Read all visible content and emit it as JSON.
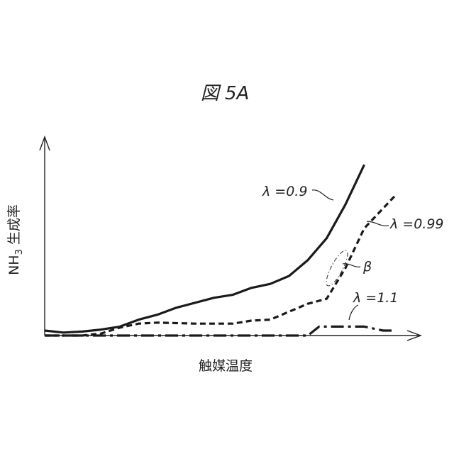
{
  "chart_data": {
    "type": "line",
    "title": "図 5A",
    "xlabel": "触媒温度",
    "ylabel_prefix": "NH",
    "ylabel_sub": "3",
    "ylabel_suffix": " 生成率",
    "xlim": [
      0,
      10
    ],
    "ylim": [
      0,
      10
    ],
    "grid": false,
    "series": [
      {
        "name": "λ =0.9",
        "style": "solid",
        "x": [
          0,
          0.5,
          1.0,
          1.5,
          2.0,
          2.5,
          3.0,
          3.5,
          4.0,
          4.5,
          5.0,
          5.5,
          6.0,
          6.5,
          7.0,
          7.5,
          8.0,
          8.5
        ],
        "y": [
          0.25,
          0.15,
          0.2,
          0.3,
          0.45,
          0.8,
          1.05,
          1.4,
          1.65,
          1.9,
          2.05,
          2.4,
          2.6,
          3.0,
          3.8,
          4.9,
          6.6,
          8.6
        ]
      },
      {
        "name": "λ =0.99",
        "style": "dashed",
        "x": [
          0,
          1.0,
          1.5,
          2.0,
          2.5,
          3.0,
          4.0,
          5.0,
          5.5,
          6.0,
          6.5,
          7.0,
          7.5,
          8.0,
          8.5,
          9.3
        ],
        "y": [
          0,
          0,
          0.1,
          0.4,
          0.6,
          0.65,
          0.6,
          0.6,
          0.75,
          0.8,
          1.2,
          1.6,
          1.85,
          3.4,
          5.4,
          7.0
        ]
      },
      {
        "name": "λ =1.1",
        "style": "dashdot",
        "x": [
          0,
          1,
          2,
          3,
          4,
          5,
          6,
          7,
          7.3,
          7.6,
          8.0,
          8.5,
          9.0,
          9.3
        ],
        "y": [
          0,
          0,
          0,
          0,
          0,
          0,
          0,
          0,
          0.45,
          0.45,
          0.45,
          0.45,
          0.25,
          0.25
        ]
      }
    ],
    "annotations": [
      {
        "text": "β",
        "target": "λ =0.99",
        "style": "dash-dot ellipse"
      }
    ]
  }
}
